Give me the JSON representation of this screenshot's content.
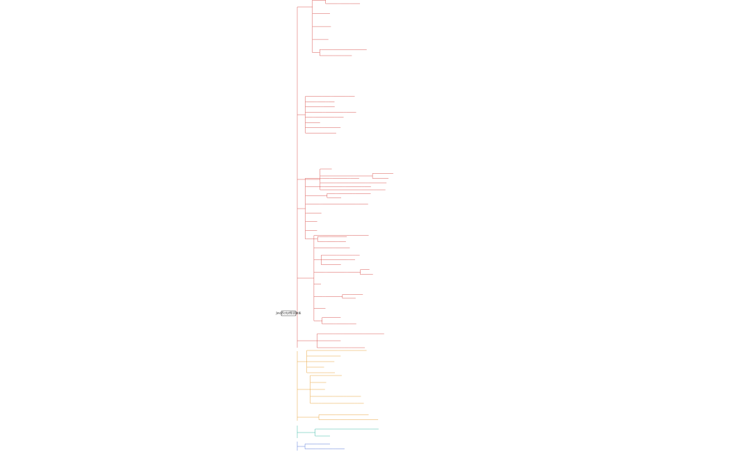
{
  "root": {
    "label": "JavaScript知识体系"
  }
}
